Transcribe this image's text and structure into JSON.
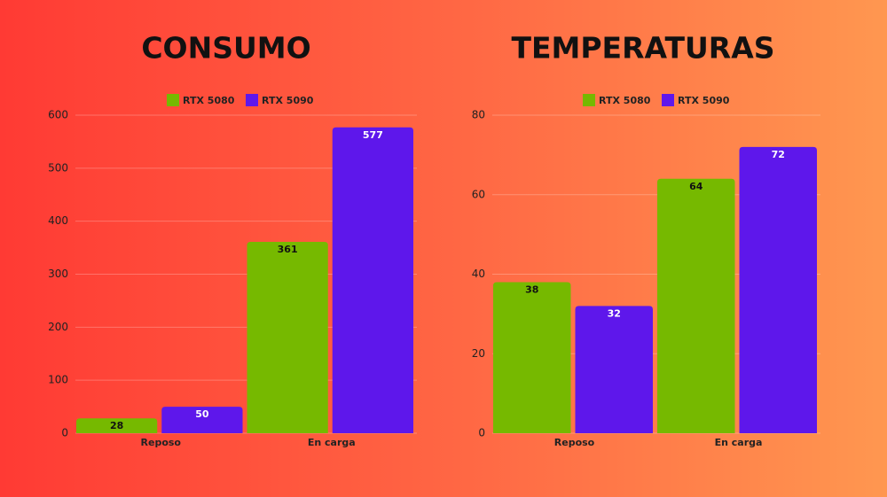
{
  "chart_data": [
    {
      "type": "bar",
      "title": "CONSUMO",
      "categories": [
        "Reposo",
        "En carga"
      ],
      "series": [
        {
          "name": "RTX 5080",
          "color": "#76b900",
          "values": [
            28,
            361
          ]
        },
        {
          "name": "RTX 5090",
          "color": "#5e17eb",
          "values": [
            50,
            577
          ]
        }
      ],
      "ylim": [
        0,
        600
      ],
      "yticks": [
        0,
        100,
        200,
        300,
        400,
        500,
        600
      ],
      "grid": true
    },
    {
      "type": "bar",
      "title": "TEMPERATURAS",
      "categories": [
        "Reposo",
        "En carga"
      ],
      "series": [
        {
          "name": "RTX 5080",
          "color": "#76b900",
          "values": [
            38,
            64
          ]
        },
        {
          "name": "RTX 5090",
          "color": "#5e17eb",
          "values": [
            32,
            72
          ]
        }
      ],
      "ylim": [
        0,
        80
      ],
      "yticks": [
        0,
        20,
        40,
        60,
        80
      ],
      "grid": true
    }
  ]
}
